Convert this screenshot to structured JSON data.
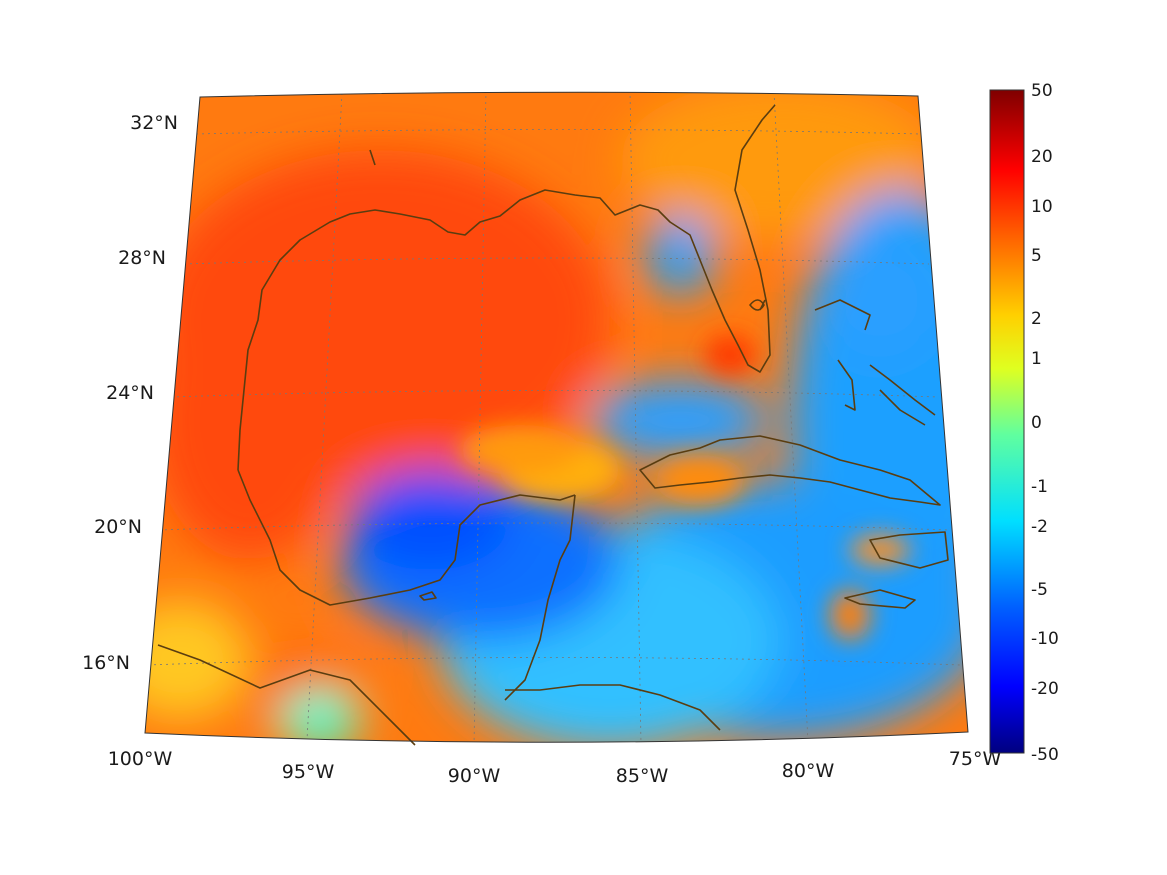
{
  "map": {
    "projection": "conic (Lambert-like), Gulf of Mexico / Caribbean region",
    "lat_labels": [
      "32°N",
      "28°N",
      "24°N",
      "20°N",
      "16°N"
    ],
    "lon_labels": [
      "100°W",
      "95°W",
      "90°W",
      "85°W",
      "80°W",
      "75°W"
    ],
    "coastline_color": "#5a3d10",
    "grid": "dotted"
  },
  "colorbar": {
    "colormap": "jet",
    "tick_labels": [
      "50",
      "20",
      "10",
      "5",
      "2",
      "1",
      "0",
      "-1",
      "-2",
      "-5",
      "-10",
      "-20",
      "-50"
    ],
    "scale": "symmetric log-like"
  }
}
